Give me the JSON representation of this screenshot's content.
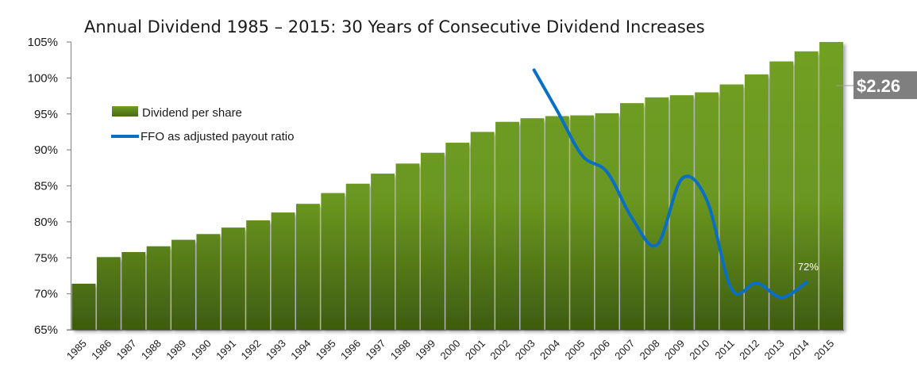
{
  "chart_data": {
    "type": "bar",
    "title": "Annual Dividend 1985 – 2015:  30 Years of Consecutive Dividend Increases",
    "xlabel": "",
    "ylabel": "",
    "ylim": [
      65,
      105
    ],
    "yticks": [
      65,
      70,
      75,
      80,
      85,
      90,
      95,
      100,
      105
    ],
    "ytick_labels": [
      "65%",
      "70%",
      "75%",
      "80%",
      "85%",
      "90%",
      "95%",
      "100%",
      "105%"
    ],
    "grid": false,
    "legend_position": "top-left",
    "categories": [
      "1985",
      "1986",
      "1987",
      "1988",
      "1989",
      "1990",
      "1991",
      "1992",
      "1993",
      "1994",
      "1995",
      "1996",
      "1997",
      "1998",
      "1999",
      "2000",
      "2001",
      "2002",
      "2003",
      "2004",
      "2005",
      "2006",
      "2007",
      "2008",
      "2009",
      "2010",
      "2011",
      "2012",
      "2013",
      "2014",
      "2015"
    ],
    "series": [
      {
        "name": "Dividend per share",
        "type": "bar",
        "color": "#6f9c22",
        "color_dark": "#3e5c10",
        "values": [
          71.4,
          75.1,
          75.8,
          76.6,
          77.5,
          78.3,
          79.2,
          80.2,
          81.3,
          82.5,
          84.0,
          85.3,
          86.7,
          88.1,
          89.6,
          91.0,
          92.5,
          93.9,
          94.4,
          94.7,
          94.8,
          95.1,
          96.5,
          97.3,
          97.6,
          98.0,
          99.1,
          100.5,
          102.3,
          103.7,
          105.0
        ]
      },
      {
        "name": "FFO as adjusted payout ratio",
        "type": "line",
        "color": "#0a6fc2",
        "values": [
          null,
          null,
          null,
          null,
          null,
          null,
          null,
          null,
          null,
          null,
          null,
          null,
          null,
          null,
          null,
          null,
          null,
          null,
          101.1,
          95.4,
          89.2,
          86.9,
          80.5,
          76.8,
          86.0,
          83.0,
          70.6,
          71.5,
          69.5,
          71.6,
          null
        ]
      }
    ],
    "annotations": [
      {
        "text": "$2.26",
        "category": "2015",
        "style": "callout"
      },
      {
        "text": "72%",
        "category": "2014",
        "series": "FFO as adjusted payout ratio"
      }
    ]
  }
}
